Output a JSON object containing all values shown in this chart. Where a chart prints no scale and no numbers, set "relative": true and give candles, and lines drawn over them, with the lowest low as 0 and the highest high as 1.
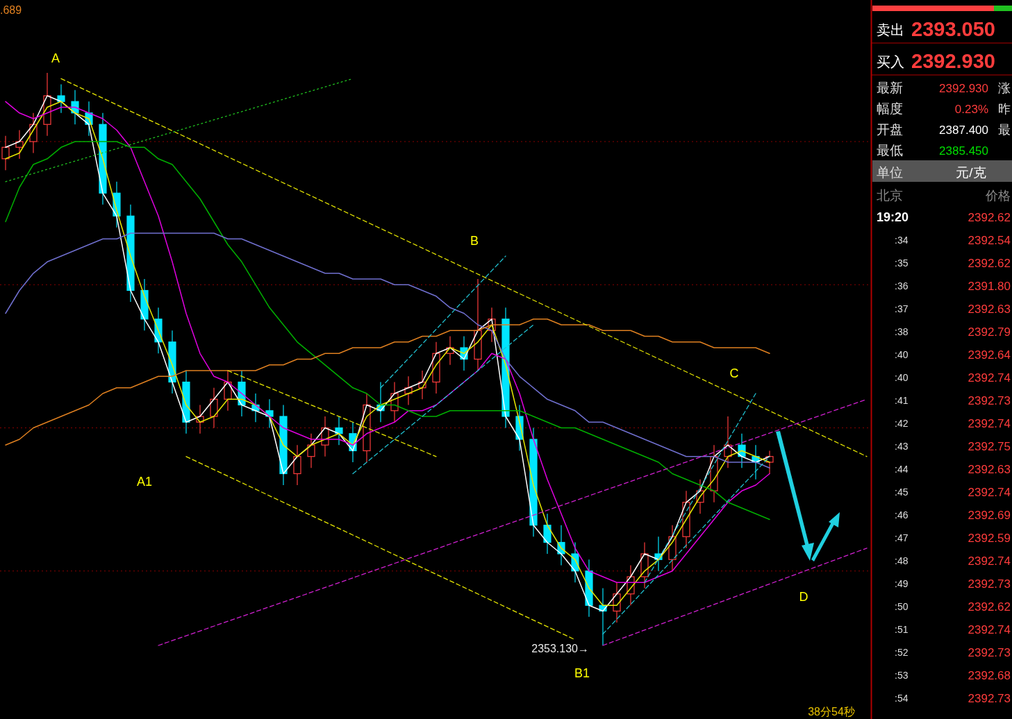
{
  "chart_data": [
    {
      "type": "candlestick",
      "relative": true,
      "categories": [
        null,
        null,
        null,
        null,
        null,
        null,
        null,
        null,
        null,
        null,
        null,
        null,
        null,
        null,
        null,
        null,
        null,
        null,
        null,
        null,
        null,
        null,
        null,
        null,
        null,
        null,
        null,
        null,
        null,
        null,
        null,
        null,
        null,
        null,
        null,
        null,
        null,
        null,
        null,
        null,
        null,
        null,
        null,
        null,
        null,
        null,
        null,
        null,
        null,
        null,
        null,
        null,
        null,
        null,
        null,
        null,
        null,
        null,
        null,
        null,
        null,
        null,
        null
      ],
      "ohlc": [
        [
          0.85,
          0.89,
          0.83,
          0.87
        ],
        [
          0.87,
          0.9,
          0.85,
          0.88
        ],
        [
          0.88,
          0.93,
          0.86,
          0.91
        ],
        [
          0.91,
          1.0,
          0.89,
          0.96
        ],
        [
          0.96,
          0.98,
          0.93,
          0.95
        ],
        [
          0.95,
          0.97,
          0.91,
          0.93
        ],
        [
          0.93,
          0.95,
          0.89,
          0.91
        ],
        [
          0.91,
          0.93,
          0.77,
          0.79
        ],
        [
          0.79,
          0.81,
          0.73,
          0.75
        ],
        [
          0.75,
          0.77,
          0.6,
          0.62
        ],
        [
          0.62,
          0.64,
          0.55,
          0.57
        ],
        [
          0.57,
          0.59,
          0.51,
          0.53
        ],
        [
          0.53,
          0.55,
          0.44,
          0.46
        ],
        [
          0.46,
          0.48,
          0.37,
          0.39
        ],
        [
          0.39,
          0.42,
          0.37,
          0.4
        ],
        [
          0.4,
          0.45,
          0.38,
          0.43
        ],
        [
          0.43,
          0.48,
          0.41,
          0.46
        ],
        [
          0.46,
          0.48,
          0.4,
          0.42
        ],
        [
          0.42,
          0.44,
          0.39,
          0.41
        ],
        [
          0.41,
          0.43,
          0.38,
          0.4
        ],
        [
          0.4,
          0.42,
          0.28,
          0.3
        ],
        [
          0.3,
          0.35,
          0.28,
          0.33
        ],
        [
          0.33,
          0.37,
          0.31,
          0.35
        ],
        [
          0.35,
          0.4,
          0.33,
          0.38
        ],
        [
          0.38,
          0.4,
          0.35,
          0.37
        ],
        [
          0.37,
          0.39,
          0.32,
          0.34
        ],
        [
          0.34,
          0.44,
          0.32,
          0.42
        ],
        [
          0.42,
          0.46,
          0.39,
          0.41
        ],
        [
          0.41,
          0.46,
          0.39,
          0.44
        ],
        [
          0.44,
          0.47,
          0.42,
          0.45
        ],
        [
          0.45,
          0.48,
          0.43,
          0.46
        ],
        [
          0.46,
          0.53,
          0.44,
          0.51
        ],
        [
          0.51,
          0.54,
          0.49,
          0.52
        ],
        [
          0.52,
          0.54,
          0.48,
          0.5
        ],
        [
          0.5,
          0.64,
          0.48,
          0.55
        ],
        [
          0.55,
          0.59,
          0.53,
          0.57
        ],
        [
          0.57,
          0.59,
          0.38,
          0.4
        ],
        [
          0.4,
          0.42,
          0.34,
          0.36
        ],
        [
          0.36,
          0.38,
          0.19,
          0.21
        ],
        [
          0.21,
          0.23,
          0.16,
          0.18
        ],
        [
          0.18,
          0.21,
          0.14,
          0.16
        ],
        [
          0.16,
          0.18,
          0.11,
          0.13
        ],
        [
          0.13,
          0.15,
          0.05,
          0.07
        ],
        [
          0.07,
          0.1,
          0.0,
          0.06
        ],
        [
          0.06,
          0.11,
          0.04,
          0.09
        ],
        [
          0.09,
          0.14,
          0.07,
          0.12
        ],
        [
          0.12,
          0.18,
          0.1,
          0.16
        ],
        [
          0.16,
          0.19,
          0.13,
          0.15
        ],
        [
          0.15,
          0.21,
          0.13,
          0.19
        ],
        [
          0.19,
          0.27,
          0.17,
          0.25
        ],
        [
          0.25,
          0.29,
          0.23,
          0.27
        ],
        [
          0.27,
          0.35,
          0.25,
          0.33
        ],
        [
          0.33,
          0.4,
          0.31,
          0.35
        ],
        [
          0.35,
          0.37,
          0.31,
          0.33
        ],
        [
          0.33,
          0.35,
          0.29,
          0.32
        ],
        [
          0.32,
          0.34,
          0.3,
          0.33
        ],
        null,
        null,
        null,
        null,
        null,
        null,
        null
      ],
      "series": [
        {
          "type": "line",
          "color": "#ffffff",
          "line_style": "solid",
          "values": [
            0.87,
            0.88,
            0.91,
            0.96,
            0.95,
            0.93,
            0.91,
            0.79,
            0.75,
            0.62,
            0.57,
            0.53,
            0.46,
            0.39,
            0.4,
            0.43,
            0.46,
            0.42,
            0.41,
            0.4,
            0.3,
            0.33,
            0.35,
            0.38,
            0.37,
            0.34,
            0.42,
            0.41,
            0.44,
            0.45,
            0.46,
            0.51,
            0.52,
            0.5,
            0.55,
            0.57,
            0.4,
            0.36,
            0.21,
            0.18,
            0.16,
            0.13,
            0.07,
            0.06,
            0.09,
            0.12,
            0.16,
            0.15,
            0.19,
            0.25,
            0.27,
            0.33,
            0.35,
            0.33,
            0.32,
            0.33,
            null,
            null,
            null,
            null,
            null,
            null,
            null
          ]
        },
        {
          "type": "line",
          "color": "#e6e600",
          "line_style": "solid",
          "values": [
            0.85,
            0.86,
            0.9,
            0.94,
            0.95,
            0.93,
            0.92,
            0.85,
            0.76,
            0.68,
            0.61,
            0.55,
            0.49,
            0.42,
            0.39,
            0.4,
            0.43,
            0.43,
            0.42,
            0.4,
            0.35,
            0.33,
            0.35,
            0.36,
            0.37,
            0.35,
            0.4,
            0.42,
            0.43,
            0.44,
            0.45,
            0.49,
            0.52,
            0.51,
            0.53,
            0.56,
            0.49,
            0.39,
            0.28,
            0.21,
            0.17,
            0.15,
            0.1,
            0.07,
            0.07,
            0.1,
            0.13,
            0.15,
            0.18,
            0.22,
            0.26,
            0.29,
            0.33,
            0.34,
            0.33,
            0.32,
            null,
            null,
            null,
            null,
            null,
            null,
            null
          ]
        },
        {
          "type": "line",
          "color": "#e000e0",
          "line_style": "solid",
          "values": [
            0.95,
            0.93,
            0.92,
            0.93,
            0.94,
            0.94,
            0.93,
            0.92,
            0.9,
            0.87,
            0.81,
            0.75,
            0.67,
            0.58,
            0.51,
            0.47,
            0.46,
            0.44,
            0.42,
            0.4,
            0.38,
            0.37,
            0.36,
            0.36,
            0.36,
            0.35,
            0.37,
            0.38,
            0.39,
            0.41,
            0.41,
            0.42,
            0.44,
            0.46,
            0.48,
            0.51,
            0.5,
            0.44,
            0.36,
            0.29,
            0.23,
            0.17,
            0.13,
            0.12,
            0.11,
            0.11,
            0.11,
            0.12,
            0.13,
            0.16,
            0.19,
            0.22,
            0.25,
            0.27,
            0.28,
            0.3,
            null,
            null,
            null,
            null,
            null,
            null,
            null
          ]
        },
        {
          "type": "line",
          "color": "#00b000",
          "line_style": "solid",
          "values": [
            0.74,
            0.8,
            0.84,
            0.85,
            0.87,
            0.88,
            0.88,
            0.88,
            0.88,
            0.87,
            0.87,
            0.85,
            0.84,
            0.81,
            0.78,
            0.74,
            0.7,
            0.67,
            0.63,
            0.59,
            0.56,
            0.53,
            0.51,
            0.49,
            0.47,
            0.45,
            0.44,
            0.42,
            0.42,
            0.41,
            0.4,
            0.4,
            0.41,
            0.41,
            0.41,
            0.41,
            0.41,
            0.41,
            0.4,
            0.39,
            0.38,
            0.38,
            0.37,
            0.36,
            0.35,
            0.34,
            0.33,
            0.32,
            0.3,
            0.29,
            0.28,
            0.27,
            0.25,
            0.24,
            0.23,
            0.22,
            null,
            null,
            null,
            null,
            null,
            null,
            null
          ]
        },
        {
          "type": "line",
          "color": "#7070d0",
          "line_style": "solid",
          "values": [
            0.58,
            0.62,
            0.65,
            0.67,
            0.68,
            0.69,
            0.7,
            0.71,
            0.71,
            0.72,
            0.72,
            0.72,
            0.72,
            0.72,
            0.72,
            0.72,
            0.71,
            0.71,
            0.7,
            0.69,
            0.68,
            0.67,
            0.66,
            0.65,
            0.65,
            0.64,
            0.64,
            0.64,
            0.63,
            0.63,
            0.62,
            0.61,
            0.59,
            0.58,
            0.56,
            0.55,
            0.5,
            0.47,
            0.45,
            0.43,
            0.42,
            0.41,
            0.39,
            0.39,
            0.38,
            0.37,
            0.36,
            0.35,
            0.34,
            0.33,
            0.33,
            0.33,
            0.32,
            0.32,
            0.32,
            0.31,
            null,
            null,
            null,
            null,
            null,
            null,
            null
          ]
        },
        {
          "type": "line",
          "color": "#e08020",
          "line_style": "solid",
          "values": [
            0.35,
            0.36,
            0.38,
            0.39,
            0.4,
            0.41,
            0.42,
            0.44,
            0.45,
            0.45,
            0.46,
            0.47,
            0.47,
            0.48,
            0.48,
            0.48,
            0.48,
            0.48,
            0.48,
            0.49,
            0.49,
            0.5,
            0.5,
            0.51,
            0.51,
            0.52,
            0.52,
            0.52,
            0.53,
            0.53,
            0.54,
            0.54,
            0.55,
            0.55,
            0.55,
            0.56,
            0.56,
            0.56,
            0.57,
            0.57,
            0.56,
            0.56,
            0.56,
            0.55,
            0.55,
            0.55,
            0.54,
            0.54,
            0.53,
            0.53,
            0.53,
            0.52,
            0.52,
            0.52,
            0.52,
            0.51,
            null,
            null,
            null,
            null,
            null,
            null,
            null
          ]
        },
        {
          "type": "line",
          "color": "#e6e600",
          "line_style": "dashed",
          "values": [
            null,
            null,
            null,
            null,
            0.99,
            null,
            null,
            null,
            null,
            null,
            null,
            null,
            null,
            null,
            null,
            null,
            null,
            null,
            null,
            null,
            null,
            null,
            null,
            null,
            null,
            null,
            null,
            null,
            null,
            null,
            null,
            null,
            null,
            null,
            null,
            null,
            null,
            null,
            null,
            null,
            null,
            null,
            null,
            null,
            null,
            null,
            null,
            null,
            null,
            null,
            null,
            null,
            null,
            null,
            null,
            null,
            null,
            null,
            null,
            null,
            null,
            null,
            0.33
          ]
        },
        {
          "type": "line",
          "color": "#e6e600",
          "line_style": "dashed",
          "values": [
            null,
            null,
            null,
            null,
            null,
            null,
            null,
            null,
            null,
            null,
            null,
            null,
            null,
            0.33,
            null,
            null,
            null,
            null,
            null,
            null,
            null,
            null,
            null,
            null,
            null,
            null,
            null,
            null,
            null,
            null,
            null,
            null,
            null,
            null,
            null,
            null,
            null,
            null,
            null,
            null,
            null,
            0.01,
            null,
            null,
            null,
            null,
            null,
            null,
            null,
            null,
            null,
            null,
            null,
            null,
            null,
            null,
            null,
            null,
            null,
            null,
            null,
            null,
            null
          ]
        },
        {
          "type": "line",
          "color": "#e6e600",
          "line_style": "dashed",
          "values": [
            null,
            null,
            null,
            null,
            null,
            null,
            null,
            null,
            null,
            null,
            null,
            null,
            null,
            null,
            null,
            null,
            0.48,
            null,
            null,
            null,
            null,
            null,
            null,
            null,
            null,
            null,
            null,
            null,
            null,
            null,
            null,
            0.33,
            null,
            null,
            null,
            null,
            null,
            null,
            null,
            null,
            null,
            null,
            null,
            null,
            null,
            null,
            null,
            null,
            null,
            null,
            null,
            null,
            null,
            null,
            null,
            null,
            null,
            null,
            null,
            null,
            null,
            null,
            null
          ]
        },
        {
          "type": "line",
          "color": "#d020d0",
          "line_style": "dashed",
          "values": [
            null,
            null,
            null,
            null,
            null,
            null,
            null,
            null,
            null,
            null,
            null,
            0,
            null,
            null,
            null,
            null,
            null,
            null,
            null,
            null,
            null,
            null,
            null,
            null,
            null,
            null,
            null,
            null,
            null,
            null,
            null,
            null,
            null,
            null,
            null,
            null,
            null,
            null,
            null,
            null,
            null,
            null,
            null,
            null,
            null,
            null,
            null,
            null,
            null,
            null,
            null,
            null,
            null,
            null,
            null,
            null,
            null,
            null,
            null,
            null,
            null,
            null,
            0.43
          ]
        },
        {
          "type": "line",
          "color": "#d020d0",
          "line_style": "dashed",
          "values": [
            null,
            null,
            null,
            null,
            null,
            null,
            null,
            null,
            null,
            null,
            null,
            null,
            null,
            null,
            null,
            null,
            null,
            null,
            null,
            null,
            null,
            null,
            null,
            null,
            null,
            null,
            null,
            null,
            null,
            null,
            null,
            null,
            null,
            null,
            null,
            null,
            null,
            null,
            null,
            null,
            null,
            null,
            null,
            0,
            null,
            null,
            null,
            null,
            null,
            null,
            null,
            null,
            null,
            null,
            null,
            null,
            null,
            null,
            null,
            null,
            null,
            null,
            0.17
          ]
        },
        {
          "type": "line",
          "color": "#20c020",
          "line_style": "dotted",
          "values": [
            0.81,
            null,
            null,
            null,
            null,
            null,
            null,
            null,
            null,
            null,
            null,
            null,
            null,
            null,
            null,
            null,
            null,
            null,
            null,
            null,
            null,
            null,
            null,
            null,
            null,
            0.99,
            null,
            null,
            null,
            null,
            null,
            null,
            null,
            null,
            null,
            null,
            null,
            null,
            null,
            null,
            null,
            null,
            null,
            null,
            null,
            null,
            null,
            null,
            null,
            null,
            null,
            null,
            null,
            null,
            null,
            null,
            null,
            null,
            null,
            null,
            null,
            null,
            null
          ]
        },
        {
          "type": "line",
          "color": "#20c0d0",
          "line_style": "dashed",
          "values": [
            null,
            null,
            null,
            null,
            null,
            null,
            null,
            null,
            null,
            null,
            null,
            null,
            null,
            null,
            null,
            null,
            null,
            null,
            null,
            null,
            null,
            null,
            null,
            null,
            null,
            0.3,
            null,
            null,
            null,
            null,
            null,
            null,
            null,
            null,
            null,
            null,
            null,
            null,
            0.56,
            null,
            null,
            null,
            null,
            null,
            null,
            null,
            null,
            null,
            null,
            null,
            null,
            null,
            null,
            null,
            null,
            null,
            null,
            null,
            null,
            null,
            null,
            null,
            null
          ]
        },
        {
          "type": "line",
          "color": "#20c0d0",
          "line_style": "dashed",
          "values": [
            null,
            null,
            null,
            null,
            null,
            null,
            null,
            null,
            null,
            null,
            null,
            null,
            null,
            null,
            null,
            null,
            null,
            null,
            null,
            null,
            null,
            null,
            null,
            null,
            null,
            null,
            null,
            0.45,
            null,
            null,
            null,
            null,
            null,
            null,
            null,
            null,
            0.68,
            null,
            null,
            null,
            null,
            null,
            null,
            null,
            null,
            null,
            null,
            null,
            null,
            null,
            null,
            null,
            null,
            null,
            null,
            null,
            null,
            null,
            null,
            null,
            null,
            null,
            null
          ]
        },
        {
          "type": "line",
          "color": "#20c0d0",
          "line_style": "dashed",
          "values": [
            null,
            null,
            null,
            null,
            null,
            null,
            null,
            null,
            null,
            null,
            null,
            null,
            null,
            null,
            null,
            null,
            null,
            null,
            null,
            null,
            null,
            null,
            null,
            null,
            null,
            null,
            null,
            null,
            null,
            null,
            null,
            null,
            null,
            null,
            null,
            null,
            null,
            null,
            null,
            null,
            null,
            null,
            null,
            0.02,
            null,
            null,
            null,
            null,
            null,
            null,
            null,
            null,
            null,
            null,
            null,
            0.33,
            null,
            null,
            null,
            null,
            null,
            null,
            null
          ]
        },
        {
          "type": "line",
          "color": "#20c0d0",
          "line_style": "dashed",
          "values": [
            null,
            null,
            null,
            null,
            null,
            null,
            null,
            null,
            null,
            null,
            null,
            null,
            null,
            null,
            null,
            null,
            null,
            null,
            null,
            null,
            null,
            null,
            null,
            null,
            null,
            null,
            null,
            null,
            null,
            null,
            null,
            null,
            null,
            null,
            null,
            null,
            null,
            null,
            null,
            null,
            null,
            null,
            null,
            null,
            null,
            null,
            0.11,
            null,
            null,
            null,
            null,
            null,
            null,
            null,
            0.44,
            null,
            null,
            null,
            null,
            null,
            null,
            null,
            null
          ]
        }
      ],
      "ref_lines": [
        {
          "axis": "y",
          "value": 0.88,
          "color": "#8b0000",
          "line_style": "dotted"
        },
        {
          "axis": "y",
          "value": 0.63,
          "color": "#8b0000",
          "line_style": "dotted"
        },
        {
          "axis": "y",
          "value": 0.38,
          "color": "#8b0000",
          "line_style": "dotted"
        },
        {
          "axis": "y",
          "value": 0.13,
          "color": "#8b0000",
          "line_style": "dotted"
        }
      ],
      "annotations": [
        "A",
        "A1",
        "B",
        "B1",
        "C",
        "D",
        "2353.130→",
        ".689",
        "38分54秒"
      ]
    },
    {
      "type": "other",
      "annotations": [
        "卖出",
        "2393.050",
        "买入",
        "2392.930",
        "最新",
        "2392.930",
        "涨",
        "幅度",
        "0.23%",
        "昨",
        "开盘",
        "2387.400",
        "最",
        "最低",
        "2385.450",
        "单位",
        "元/克",
        "北京",
        "价格",
        "19:20",
        "2392.62",
        ":34",
        "2392.54",
        ":35",
        "2392.62",
        ":36",
        "2391.80",
        ":37",
        "2392.63",
        ":38",
        "2392.79",
        ":40",
        "2392.64",
        ":40",
        "2392.74",
        ":41",
        "2392.73",
        ":42",
        "2392.74",
        ":43",
        "2392.75",
        ":44",
        "2392.63",
        ":45",
        "2392.74",
        ":46",
        "2392.69",
        ":47",
        "2392.59",
        ":48",
        "2392.74",
        ":49",
        "2392.73",
        ":50",
        "2392.62",
        ":51",
        "2392.74",
        ":52",
        "2392.73",
        ":53",
        "2392.68",
        ":54",
        "2392.73"
      ]
    }
  ]
}
